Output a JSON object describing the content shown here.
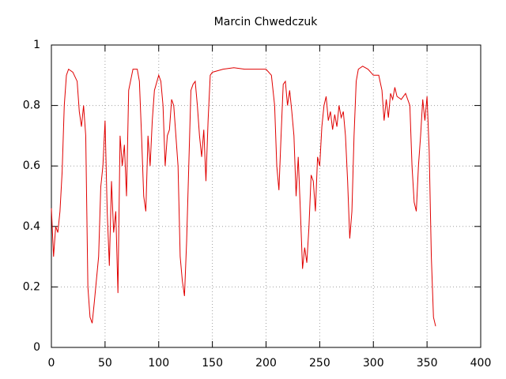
{
  "chart_data": {
    "type": "line",
    "title": "Marcin Chwedczuk",
    "x": [
      0,
      2,
      4,
      6,
      8,
      10,
      12,
      14,
      16,
      20,
      24,
      26,
      28,
      30,
      32,
      34,
      36,
      38,
      40,
      44,
      46,
      48,
      50,
      52,
      54,
      56,
      58,
      60,
      62,
      64,
      66,
      68,
      70,
      72,
      76,
      80,
      82,
      84,
      86,
      88,
      90,
      92,
      94,
      96,
      100,
      102,
      104,
      106,
      108,
      110,
      112,
      114,
      116,
      118,
      120,
      122,
      124,
      126,
      128,
      130,
      132,
      134,
      136,
      138,
      140,
      142,
      144,
      146,
      148,
      150,
      160,
      170,
      180,
      190,
      200,
      205,
      208,
      210,
      212,
      214,
      216,
      218,
      220,
      222,
      224,
      226,
      228,
      230,
      232,
      234,
      236,
      238,
      240,
      242,
      244,
      246,
      248,
      250,
      252,
      254,
      256,
      258,
      260,
      262,
      264,
      266,
      268,
      270,
      272,
      274,
      276,
      278,
      280,
      282,
      284,
      286,
      290,
      295,
      300,
      305,
      308,
      310,
      312,
      314,
      316,
      318,
      320,
      322,
      326,
      330,
      334,
      336,
      338,
      340,
      342,
      344,
      346,
      348,
      350,
      352,
      354,
      356,
      358
    ],
    "series": [
      {
        "name": "Marcin Chwedczuk",
        "color": "#e00000",
        "values": [
          0.46,
          0.3,
          0.4,
          0.38,
          0.45,
          0.58,
          0.8,
          0.9,
          0.92,
          0.91,
          0.88,
          0.78,
          0.73,
          0.8,
          0.7,
          0.2,
          0.1,
          0.08,
          0.15,
          0.3,
          0.53,
          0.6,
          0.75,
          0.45,
          0.27,
          0.55,
          0.38,
          0.45,
          0.18,
          0.7,
          0.6,
          0.67,
          0.5,
          0.85,
          0.92,
          0.92,
          0.88,
          0.7,
          0.5,
          0.45,
          0.7,
          0.6,
          0.75,
          0.85,
          0.9,
          0.88,
          0.8,
          0.6,
          0.7,
          0.72,
          0.82,
          0.8,
          0.7,
          0.6,
          0.3,
          0.22,
          0.17,
          0.35,
          0.6,
          0.85,
          0.87,
          0.88,
          0.8,
          0.7,
          0.63,
          0.72,
          0.55,
          0.75,
          0.9,
          0.91,
          0.92,
          0.925,
          0.92,
          0.92,
          0.92,
          0.9,
          0.8,
          0.6,
          0.52,
          0.7,
          0.87,
          0.88,
          0.8,
          0.85,
          0.78,
          0.7,
          0.5,
          0.63,
          0.45,
          0.26,
          0.33,
          0.28,
          0.4,
          0.57,
          0.55,
          0.45,
          0.63,
          0.6,
          0.73,
          0.8,
          0.83,
          0.75,
          0.78,
          0.72,
          0.77,
          0.73,
          0.8,
          0.76,
          0.78,
          0.7,
          0.55,
          0.36,
          0.45,
          0.7,
          0.88,
          0.92,
          0.93,
          0.92,
          0.9,
          0.9,
          0.85,
          0.75,
          0.82,
          0.76,
          0.84,
          0.82,
          0.86,
          0.83,
          0.82,
          0.84,
          0.8,
          0.6,
          0.48,
          0.45,
          0.6,
          0.7,
          0.82,
          0.75,
          0.83,
          0.65,
          0.3,
          0.1,
          0.07
        ]
      }
    ],
    "xlim": [
      0,
      400
    ],
    "xticks": [
      0,
      50,
      100,
      150,
      200,
      250,
      300,
      350,
      400
    ],
    "ylim": [
      0,
      1
    ],
    "yticks": [
      0,
      0.2,
      0.4,
      0.6,
      0.8,
      1
    ],
    "grid": true
  }
}
